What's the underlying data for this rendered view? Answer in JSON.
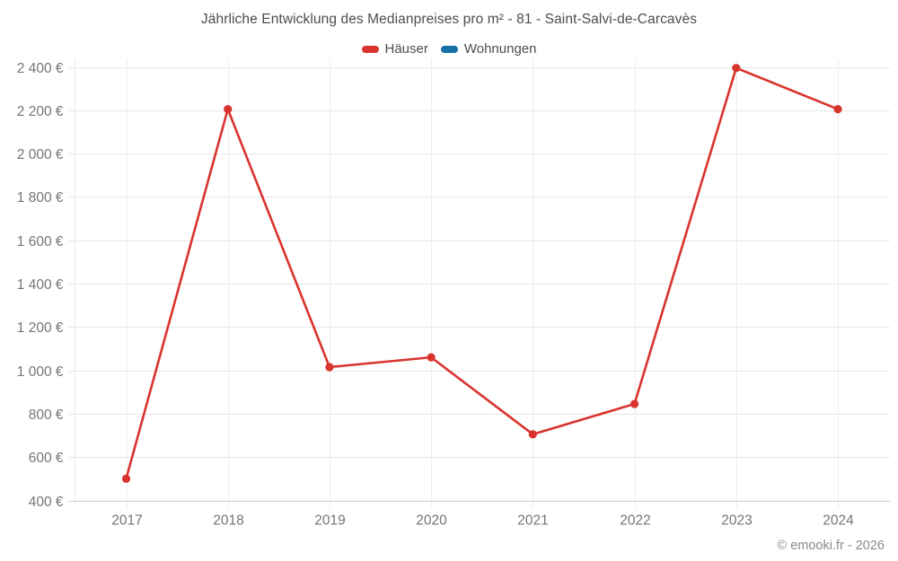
{
  "title": "Jährliche Entwicklung des Medianpreises pro m² - 81 - Saint-Salvi-de-Carcavès",
  "legend": [
    {
      "label": "Häuser",
      "color": "#d9332e"
    },
    {
      "label": "Wohnungen",
      "color": "#1670a8"
    }
  ],
  "watermark": "© emooki.fr - 2026",
  "colors": {
    "haeuser_red": "#d9332e",
    "wohnungen_blue": "#1670a8",
    "grid": "#e7e7e7",
    "axis": "#c9c9c9",
    "tick_text": "#757575",
    "title_text": "#4d4d4d"
  },
  "chart_data": {
    "type": "line",
    "categories": [
      "2017",
      "2018",
      "2019",
      "2020",
      "2021",
      "2022",
      "2023",
      "2024"
    ],
    "series": [
      {
        "name": "Häuser",
        "color": "#d9332e",
        "values": [
          500,
          2205,
          1015,
          1060,
          705,
          845,
          2395,
          2205
        ]
      },
      {
        "name": "Wohnungen",
        "color": "#1670a8",
        "values": []
      }
    ],
    "title": "Jährliche Entwicklung des Medianpreises pro m² - 81 - Saint-Salvi-de-Carcavès",
    "xlabel": "",
    "ylabel": "",
    "ylim": [
      400,
      2400
    ],
    "ytick_step": 200,
    "ytick_labels": [
      "400 €",
      "600 €",
      "800 €",
      "1 000 €",
      "1 200 €",
      "1 400 €",
      "1 600 €",
      "1 800 €",
      "2 000 €",
      "2 200 €",
      "2 400 €"
    ],
    "grid": true,
    "legend_position": "top"
  }
}
